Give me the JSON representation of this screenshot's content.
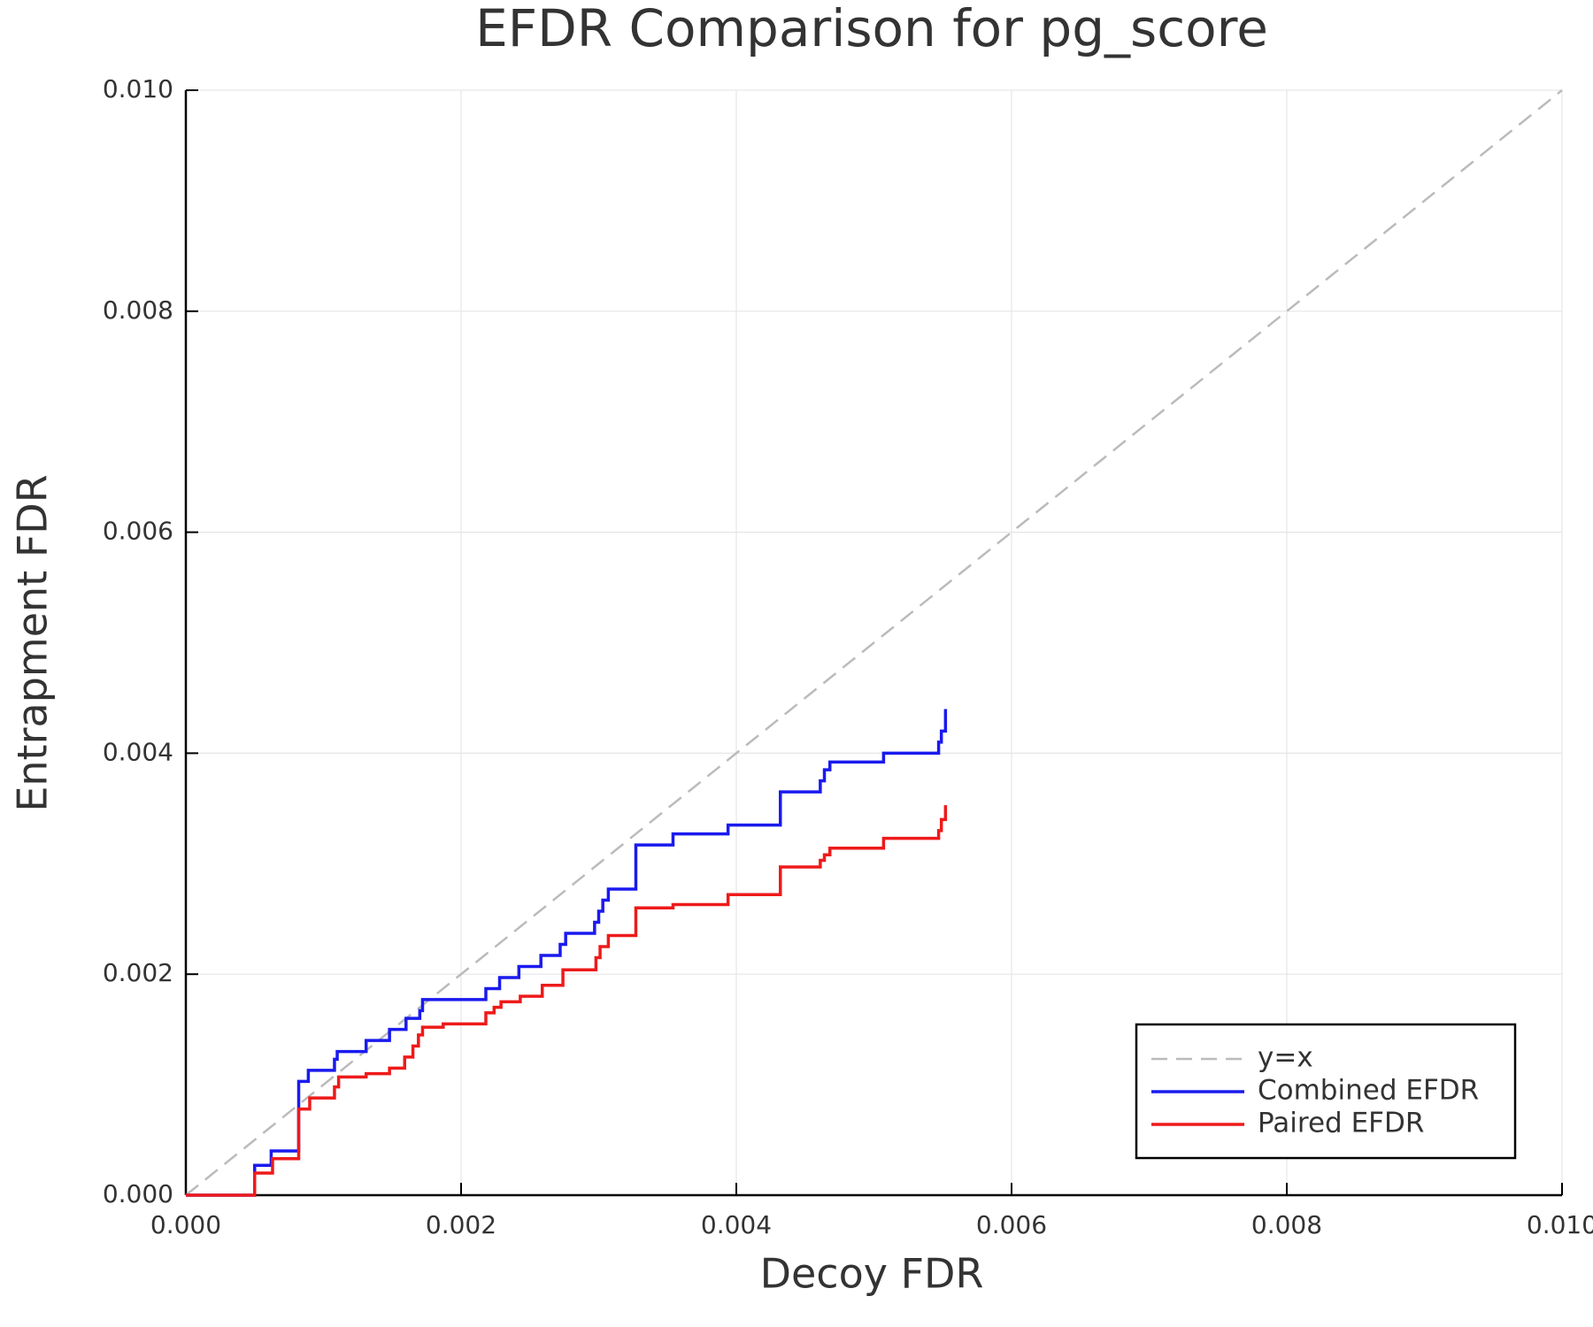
{
  "chart_data": {
    "type": "line",
    "title": "EFDR Comparison for pg_score",
    "x_label": "Decoy FDR",
    "y_label": "Entrapment FDR",
    "xlim": [
      0,
      0.01
    ],
    "ylim": [
      0,
      0.01
    ],
    "xticks": [
      {
        "value": 0,
        "label": "0.000"
      },
      {
        "value": 0.002,
        "label": "0.002"
      },
      {
        "value": 0.004,
        "label": "0.004"
      },
      {
        "value": 0.006,
        "label": "0.006"
      },
      {
        "value": 0.008,
        "label": "0.008"
      },
      {
        "value": 0.01,
        "label": "0.010"
      }
    ],
    "yticks": [
      {
        "value": 0,
        "label": "0.000"
      },
      {
        "value": 0.002,
        "label": "0.002"
      },
      {
        "value": 0.004,
        "label": "0.004"
      },
      {
        "value": 0.006,
        "label": "0.006"
      },
      {
        "value": 0.008,
        "label": "0.008"
      },
      {
        "value": 0.01,
        "label": "0.010"
      }
    ],
    "grid": true,
    "legend": "lower right",
    "series": [
      {
        "name": "y=x",
        "color": "#bbbbbb",
        "line_style": "dashed",
        "x": [
          0,
          0.01
        ],
        "values": [
          0,
          0.01
        ]
      },
      {
        "name": "Combined EFDR",
        "color": "#1a1aee",
        "line_style": "solid",
        "x": [
          0,
          0.0005,
          0.0005,
          0.00062,
          0.00062,
          0.00082,
          0.00082,
          0.00089,
          0.00089,
          0.00108,
          0.00108,
          0.0011,
          0.0011,
          0.00131,
          0.00131,
          0.00148,
          0.00148,
          0.0016,
          0.0016,
          0.0017,
          0.0017,
          0.00172,
          0.00172,
          0.00218,
          0.00218,
          0.00228,
          0.00228,
          0.00242,
          0.00242,
          0.00258,
          0.00258,
          0.00272,
          0.00272,
          0.00276,
          0.00276,
          0.00297,
          0.00297,
          0.003,
          0.003,
          0.00303,
          0.00303,
          0.00307,
          0.00307,
          0.00327,
          0.00327,
          0.00354,
          0.00354,
          0.00394,
          0.00394,
          0.00432,
          0.00432,
          0.00461,
          0.00461,
          0.00464,
          0.00464,
          0.00468,
          0.00468,
          0.00507,
          0.00507,
          0.00547,
          0.00547,
          0.00549,
          0.00549,
          0.00552,
          0.00552
        ],
        "values": [
          0,
          0,
          0.00027,
          0.00027,
          0.0004,
          0.0004,
          0.00103,
          0.00103,
          0.00113,
          0.00113,
          0.00123,
          0.00123,
          0.0013,
          0.0013,
          0.0014,
          0.0014,
          0.0015,
          0.0015,
          0.0016,
          0.0016,
          0.00167,
          0.00167,
          0.00177,
          0.00177,
          0.00187,
          0.00187,
          0.00197,
          0.00197,
          0.00207,
          0.00207,
          0.00217,
          0.00217,
          0.00227,
          0.00227,
          0.00237,
          0.00237,
          0.00247,
          0.00247,
          0.00257,
          0.00257,
          0.00267,
          0.00267,
          0.00277,
          0.00277,
          0.00317,
          0.00317,
          0.00327,
          0.00327,
          0.00335,
          0.00335,
          0.00365,
          0.00365,
          0.00375,
          0.00375,
          0.00385,
          0.00385,
          0.00392,
          0.00392,
          0.004,
          0.004,
          0.0041,
          0.0041,
          0.0042,
          0.0042,
          0.0044
        ]
      },
      {
        "name": "Paired EFDR",
        "color": "#ee1a1a",
        "line_style": "solid",
        "x": [
          0,
          0.0005,
          0.0005,
          0.00063,
          0.00063,
          0.00082,
          0.00082,
          0.0009,
          0.0009,
          0.00108,
          0.00108,
          0.00111,
          0.00111,
          0.00131,
          0.00131,
          0.00148,
          0.00148,
          0.00159,
          0.00159,
          0.00165,
          0.00165,
          0.00169,
          0.00169,
          0.00172,
          0.00172,
          0.00187,
          0.00187,
          0.00218,
          0.00218,
          0.00224,
          0.00224,
          0.00229,
          0.00229,
          0.00243,
          0.00243,
          0.00259,
          0.00259,
          0.00274,
          0.00274,
          0.00298,
          0.00298,
          0.00301,
          0.00301,
          0.00307,
          0.00307,
          0.00327,
          0.00327,
          0.00354,
          0.00354,
          0.00394,
          0.00394,
          0.00432,
          0.00432,
          0.00461,
          0.00461,
          0.00464,
          0.00464,
          0.00468,
          0.00468,
          0.00507,
          0.00507,
          0.00547,
          0.00547,
          0.00549,
          0.00549,
          0.00552,
          0.00552
        ],
        "values": [
          0,
          0,
          0.0002,
          0.0002,
          0.00033,
          0.00033,
          0.00078,
          0.00078,
          0.00088,
          0.00088,
          0.00098,
          0.00098,
          0.00107,
          0.00107,
          0.0011,
          0.0011,
          0.00115,
          0.00115,
          0.00125,
          0.00125,
          0.00135,
          0.00135,
          0.00145,
          0.00145,
          0.00152,
          0.00152,
          0.00155,
          0.00155,
          0.00165,
          0.00165,
          0.0017,
          0.0017,
          0.00175,
          0.00175,
          0.0018,
          0.0018,
          0.0019,
          0.0019,
          0.00204,
          0.00204,
          0.00215,
          0.00215,
          0.00225,
          0.00225,
          0.00235,
          0.00235,
          0.0026,
          0.0026,
          0.00263,
          0.00263,
          0.00272,
          0.00272,
          0.00297,
          0.00297,
          0.00303,
          0.00303,
          0.00308,
          0.00308,
          0.00314,
          0.00314,
          0.00323,
          0.00323,
          0.0033,
          0.0033,
          0.0034,
          0.0034,
          0.00353
        ]
      }
    ]
  }
}
